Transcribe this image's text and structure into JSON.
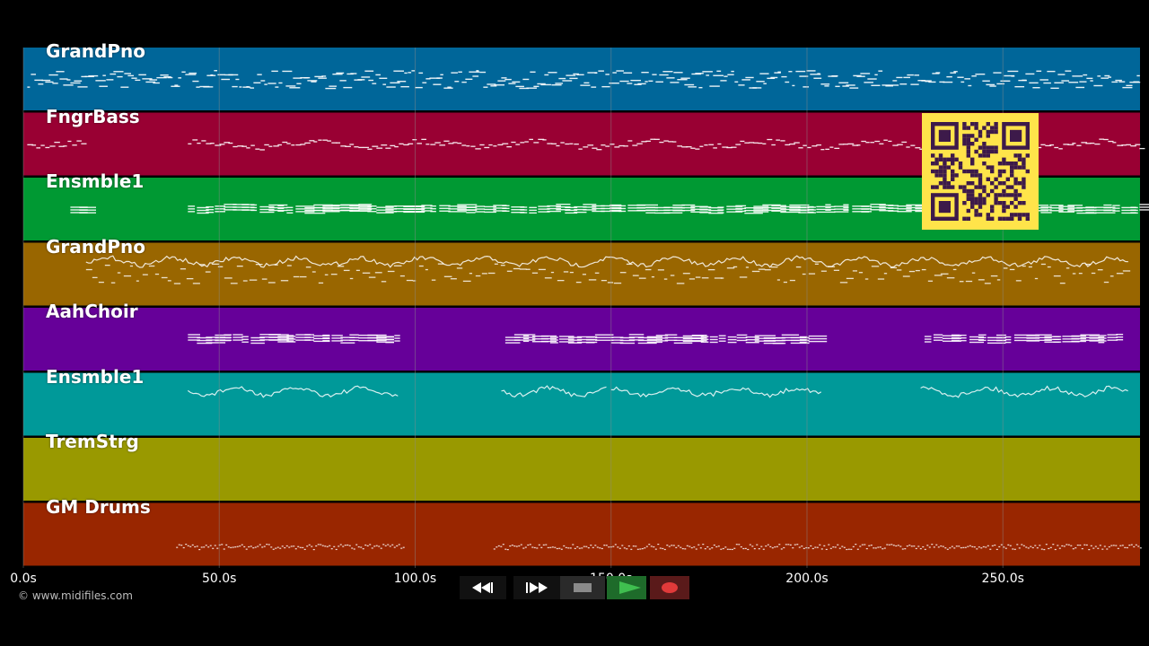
{
  "timeline": {
    "duration_seconds": 285,
    "ticks": [
      {
        "value": 0,
        "label": "0.0s"
      },
      {
        "value": 50,
        "label": "50.0s"
      },
      {
        "value": 100,
        "label": "100.0s"
      },
      {
        "value": 150,
        "label": "150.0s"
      },
      {
        "value": 200,
        "label": "200.0s"
      },
      {
        "value": 250,
        "label": "250.0s"
      }
    ],
    "grid_color": "#8a8a8a"
  },
  "tracks": [
    {
      "name": "GrandPno",
      "color": "#006699",
      "style": "dense",
      "segments": [
        [
          1,
          285
        ]
      ]
    },
    {
      "name": "FngrBass",
      "color": "#990033",
      "style": "line",
      "segments": [
        [
          1,
          15
        ],
        [
          42,
          285
        ]
      ]
    },
    {
      "name": "Ensmble1",
      "color": "#009933",
      "style": "chords",
      "segments": [
        [
          12,
          15
        ],
        [
          42,
          285
        ]
      ]
    },
    {
      "name": "GrandPno",
      "color": "#996600",
      "style": "melody",
      "segments": [
        [
          16,
          282
        ]
      ]
    },
    {
      "name": "AahChoir",
      "color": "#660099",
      "style": "chords",
      "segments": [
        [
          42,
          95
        ],
        [
          123,
          147
        ],
        [
          150,
          202
        ],
        [
          230,
          253
        ],
        [
          256,
          280
        ]
      ]
    },
    {
      "name": "Ensmble1",
      "color": "#009999",
      "style": "melody",
      "segments": [
        [
          42,
          96
        ],
        [
          122,
          149
        ],
        [
          150,
          204
        ],
        [
          229,
          282
        ]
      ]
    },
    {
      "name": "TremStrg",
      "color": "#999900",
      "style": "none",
      "segments": []
    },
    {
      "name": "GM Drums",
      "color": "#992600",
      "style": "drums",
      "segments": [
        [
          39,
          97
        ],
        [
          120,
          285
        ]
      ]
    }
  ],
  "watermark": "© www.midifiles.com",
  "transport": {
    "buttons": [
      {
        "name": "rewind-button",
        "icon": "rewind-icon"
      },
      {
        "name": "fast-forward-button",
        "icon": "fast-forward-icon"
      },
      {
        "name": "stop-button",
        "icon": "stop-icon"
      },
      {
        "name": "play-button",
        "icon": "play-icon"
      },
      {
        "name": "record-button",
        "icon": "record-icon"
      }
    ],
    "colors": {
      "play": "#1e6b2a",
      "play_icon": "#3fbf4f",
      "record": "#5a1a1a",
      "record_icon": "#e03a3a",
      "neutral": "#2a2a2a"
    }
  },
  "qr": {
    "background": "#ffe44a",
    "modules": "#3d1a4a"
  }
}
